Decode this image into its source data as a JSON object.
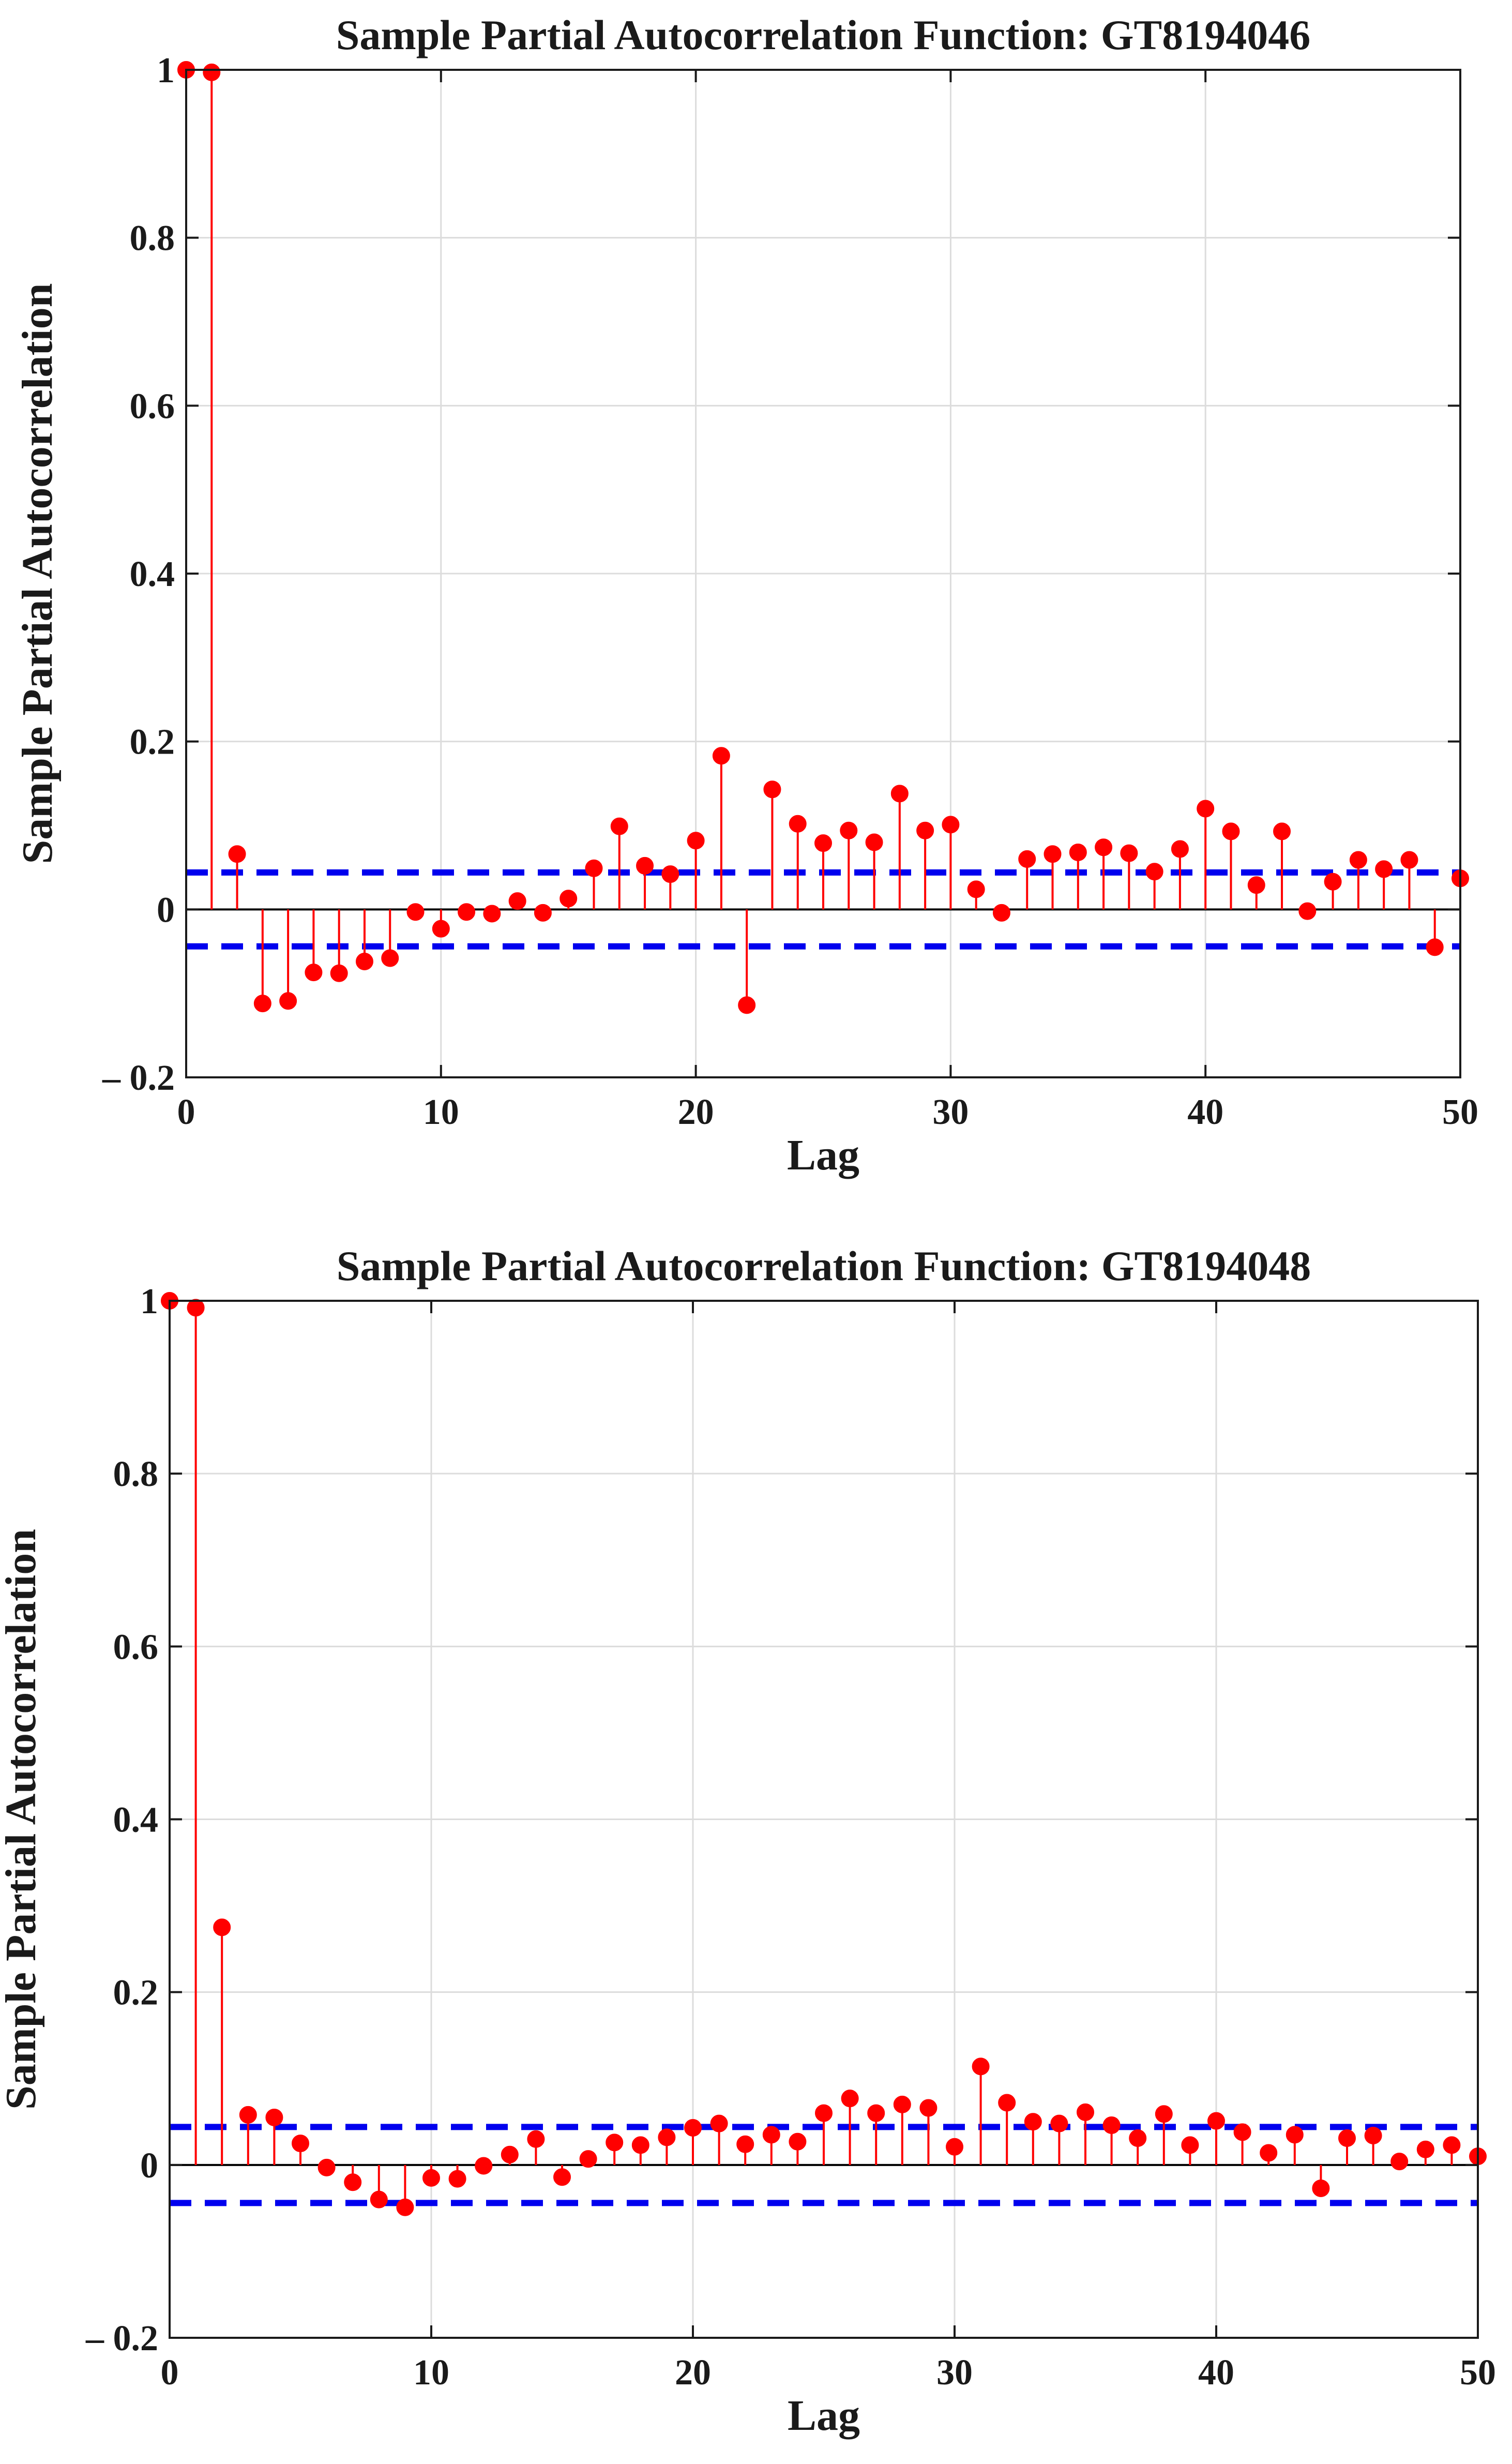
{
  "chart_data": [
    {
      "type": "stem",
      "title": "Sample Partial Autocorrelation Function: GT8194046",
      "xlabel": "Lag",
      "ylabel": "Sample Partial Autocorrelation",
      "xlim": [
        0,
        50
      ],
      "ylim": [
        -0.2,
        1
      ],
      "xticks": [
        0,
        10,
        20,
        30,
        40,
        50
      ],
      "xtick_labels": [
        "0",
        "10",
        "20",
        "30",
        "40",
        "50"
      ],
      "yticks": [
        -0.2,
        0,
        0.2,
        0.4,
        0.6,
        0.8,
        1
      ],
      "ytick_labels": [
        "– 0.2",
        "0",
        "0.2",
        "0.4",
        "0.6",
        "0.8",
        "1"
      ],
      "grid": true,
      "confidence_bounds": [
        0.044,
        -0.044
      ],
      "stem_color": "#ff0000",
      "bound_color": "#0000ee",
      "x": [
        0,
        1,
        2,
        3,
        4,
        5,
        6,
        7,
        8,
        9,
        10,
        11,
        12,
        13,
        14,
        15,
        16,
        17,
        18,
        19,
        20,
        21,
        22,
        23,
        24,
        25,
        26,
        27,
        28,
        29,
        30,
        31,
        32,
        33,
        34,
        35,
        36,
        37,
        38,
        39,
        40,
        41,
        42,
        43,
        44,
        45,
        46,
        47,
        48,
        49,
        50
      ],
      "values": [
        1.0,
        0.997,
        0.066,
        -0.112,
        -0.109,
        -0.075,
        -0.076,
        -0.062,
        -0.058,
        -0.003,
        -0.023,
        -0.003,
        -0.005,
        0.01,
        -0.004,
        0.013,
        0.049,
        0.099,
        0.052,
        0.042,
        0.082,
        0.183,
        -0.114,
        0.143,
        0.102,
        0.079,
        0.094,
        0.08,
        0.138,
        0.094,
        0.101,
        0.024,
        -0.004,
        0.06,
        0.066,
        0.068,
        0.074,
        0.067,
        0.045,
        0.072,
        0.12,
        0.093,
        0.029,
        0.093,
        -0.002,
        0.033,
        0.059,
        0.048,
        0.059,
        -0.045,
        0.037
      ]
    },
    {
      "type": "stem",
      "title": "Sample Partial Autocorrelation Function: GT8194048",
      "xlabel": "Lag",
      "ylabel": "Sample Partial Autocorrelation",
      "xlim": [
        0,
        50
      ],
      "ylim": [
        -0.2,
        1
      ],
      "xticks": [
        0,
        10,
        20,
        30,
        40,
        50
      ],
      "xtick_labels": [
        "0",
        "10",
        "20",
        "30",
        "40",
        "50"
      ],
      "yticks": [
        -0.2,
        0,
        0.2,
        0.4,
        0.6,
        0.8,
        1
      ],
      "ytick_labels": [
        "– 0.2",
        "0",
        "0.2",
        "0.4",
        "0.6",
        "0.8",
        "1"
      ],
      "grid": true,
      "confidence_bounds": [
        0.044,
        -0.044
      ],
      "stem_color": "#ff0000",
      "bound_color": "#0000ee",
      "x": [
        0,
        1,
        2,
        3,
        4,
        5,
        6,
        7,
        8,
        9,
        10,
        11,
        12,
        13,
        14,
        15,
        16,
        17,
        18,
        19,
        20,
        21,
        22,
        23,
        24,
        25,
        26,
        27,
        28,
        29,
        30,
        31,
        32,
        33,
        34,
        35,
        36,
        37,
        38,
        39,
        40,
        41,
        42,
        43,
        44,
        45,
        46,
        47,
        48,
        49,
        50
      ],
      "values": [
        1.0,
        0.992,
        0.275,
        0.058,
        0.055,
        0.025,
        -0.003,
        -0.02,
        -0.04,
        -0.049,
        -0.015,
        -0.016,
        -0.001,
        0.012,
        0.03,
        -0.014,
        0.007,
        0.026,
        0.023,
        0.032,
        0.043,
        0.048,
        0.024,
        0.035,
        0.027,
        0.06,
        0.077,
        0.06,
        0.07,
        0.066,
        0.021,
        0.114,
        0.072,
        0.05,
        0.048,
        0.061,
        0.046,
        0.031,
        0.059,
        0.023,
        0.051,
        0.038,
        0.014,
        0.035,
        -0.027,
        0.031,
        0.034,
        0.004,
        0.018,
        0.023,
        0.01
      ]
    }
  ]
}
